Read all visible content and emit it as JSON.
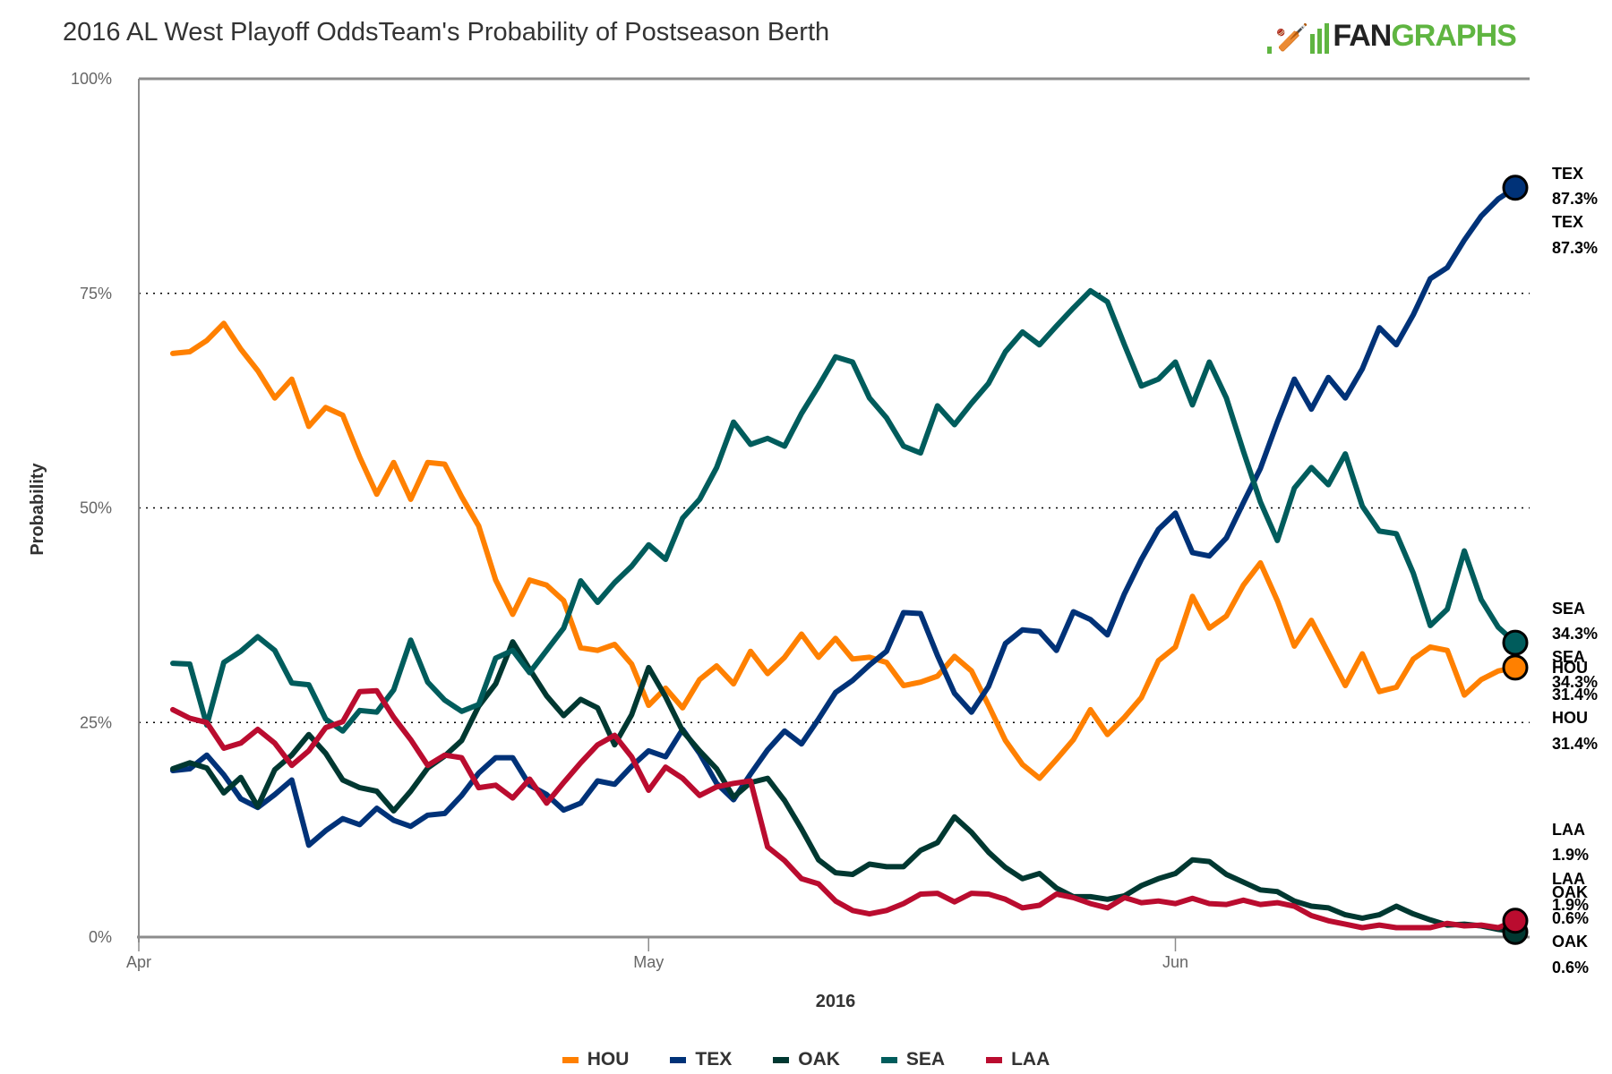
{
  "header": {
    "title": "2016 AL West Playoff OddsTeam's Probability of Postseason Berth",
    "logo": {
      "text_dark": "FAN",
      "text_green": "GRAPHS",
      "icon": "batter-silhouette-icon"
    }
  },
  "chart_data": {
    "type": "line",
    "title": "2016 AL West Playoff OddsTeam's Probability of Postseason Berth",
    "xlabel": "2016",
    "ylabel": "Probability",
    "x_tick_labels": [
      "Apr",
      "May",
      "Jun"
    ],
    "x_range": [
      "2016-04-01",
      "2016-06-21"
    ],
    "x_start": "2016-04-03",
    "x_step_days": 1,
    "y_tick_labels": [
      "0%",
      "25%",
      "50%",
      "75%",
      "100%"
    ],
    "y_ticks": [
      0,
      25,
      50,
      75,
      100
    ],
    "ylim": [
      0,
      100
    ],
    "grid": "dotted horizontal at 25/50/75",
    "legend_position": "bottom",
    "series": [
      {
        "name": "HOU",
        "color": "#ff8000",
        "end_label": "HOU",
        "end_value_label": "31.4%",
        "values": [
          68,
          68.2,
          69.5,
          71.5,
          68.5,
          66,
          62.8,
          65,
          59.5,
          61.7,
          60.8,
          55.9,
          51.6,
          55.3,
          51,
          55.3,
          55.1,
          51.3,
          47.9,
          41.6,
          37.6,
          41.6,
          41,
          39.2,
          33.7,
          33.4,
          34.1,
          31.8,
          27,
          29,
          26.7,
          30,
          31.6,
          29.5,
          33.3,
          30.7,
          32.6,
          35.3,
          32.6,
          34.8,
          32.4,
          32.6,
          32,
          29.3,
          29.7,
          30.4,
          32.7,
          31,
          27,
          22.9,
          20.1,
          18.5,
          20.7,
          23,
          26.5,
          23.6,
          25.6,
          27.9,
          32.2,
          33.8,
          39.7,
          36,
          37.4,
          41,
          43.6,
          39.2,
          33.9,
          36.9,
          33.1,
          29.3,
          33,
          28.6,
          29.1,
          32.4,
          33.8,
          33.4,
          28.2,
          30,
          31,
          31.4
        ]
      },
      {
        "name": "TEX",
        "color": "#003278",
        "end_label": "TEX",
        "end_value_label": "87.3%",
        "values": [
          19.4,
          19.6,
          21.2,
          18.9,
          16.1,
          15.1,
          16.6,
          18.3,
          10.7,
          12.4,
          13.8,
          13.1,
          15,
          13.6,
          12.9,
          14.2,
          14.4,
          16.5,
          19.1,
          20.9,
          20.9,
          17.7,
          16.6,
          14.8,
          15.6,
          18.2,
          17.8,
          19.9,
          21.7,
          21,
          24.2,
          21.4,
          17.9,
          16,
          19,
          21.8,
          24,
          22.5,
          25.4,
          28.5,
          29.9,
          31.7,
          33.3,
          37.8,
          37.7,
          32.8,
          28.4,
          26.2,
          29.2,
          34.2,
          35.8,
          35.6,
          33.4,
          37.9,
          37,
          35.2,
          40,
          44,
          47.5,
          49.4,
          44.8,
          44.4,
          46.5,
          50.6,
          54.6,
          60,
          65,
          61.5,
          65.2,
          62.8,
          66.2,
          71,
          69,
          72.5,
          76.7,
          78,
          81.2,
          84,
          86,
          87.3
        ]
      },
      {
        "name": "OAK",
        "color": "#003831",
        "end_label": "OAK",
        "end_value_label": "0.6%",
        "values": [
          19.6,
          20.3,
          19.7,
          16.8,
          18.6,
          15.2,
          19.5,
          21.2,
          23.6,
          21.4,
          18.3,
          17.4,
          17,
          14.7,
          17,
          19.7,
          21.1,
          22.9,
          26.9,
          29.5,
          34.4,
          31.2,
          28.1,
          25.8,
          27.7,
          26.7,
          22.4,
          25.9,
          31.4,
          28,
          24,
          21.7,
          19.6,
          16.3,
          18,
          18.5,
          15.9,
          12.6,
          9,
          7.5,
          7.3,
          8.5,
          8.2,
          8.2,
          10.1,
          11,
          14,
          12.2,
          9.9,
          8.1,
          6.8,
          7.4,
          5.7,
          4.7,
          4.7,
          4.4,
          4.8,
          6,
          6.8,
          7.4,
          9,
          8.8,
          7.3,
          6.4,
          5.5,
          5.3,
          4.2,
          3.6,
          3.4,
          2.6,
          2.2,
          2.6,
          3.6,
          2.7,
          2,
          1.4,
          1.5,
          1.3,
          0.9,
          0.6
        ]
      },
      {
        "name": "SEA",
        "color": "#005c5c",
        "end_label": "SEA",
        "end_value_label": "34.3%",
        "values": [
          31.9,
          31.8,
          24.7,
          32,
          33.3,
          35,
          33.4,
          29.6,
          29.4,
          25.4,
          24,
          26.4,
          26.2,
          28.8,
          34.6,
          29.7,
          27.6,
          26.3,
          27.1,
          32.5,
          33.4,
          30.8,
          33.4,
          36,
          41.5,
          39,
          41.3,
          43.2,
          45.7,
          44,
          48.8,
          51,
          54.7,
          60,
          57.4,
          58.1,
          57.2,
          61,
          64.2,
          67.6,
          67,
          62.8,
          60.5,
          57.2,
          56.4,
          61.9,
          59.7,
          62.2,
          64.5,
          68.2,
          70.5,
          69,
          71.2,
          73.3,
          75.3,
          74,
          69,
          64.2,
          65,
          67,
          62,
          67,
          62.8,
          56.6,
          50.7,
          46.2,
          52.3,
          54.7,
          52.7,
          56.3,
          50.2,
          47.3,
          47,
          42.4,
          36.3,
          38.2,
          45,
          39.3,
          36.1,
          34.3
        ]
      },
      {
        "name": "LAA",
        "color": "#ba0c2f",
        "end_label": "LAA",
        "end_value_label": "1.9%",
        "values": [
          26.5,
          25.5,
          25,
          22,
          22.6,
          24.2,
          22.6,
          20,
          21.7,
          24.4,
          25.1,
          28.6,
          28.7,
          25.6,
          23,
          20,
          21.2,
          20.9,
          17.4,
          17.7,
          16.2,
          18.4,
          15.6,
          18,
          20.3,
          22.4,
          23.5,
          21,
          17.1,
          19.8,
          18.5,
          16.5,
          17.5,
          17.9,
          18.2,
          10.5,
          8.9,
          6.8,
          6.2,
          4.2,
          3.1,
          2.7,
          3.1,
          3.9,
          5,
          5.1,
          4.1,
          5.1,
          5,
          4.4,
          3.4,
          3.7,
          5,
          4.6,
          3.9,
          3.4,
          4.6,
          4,
          4.2,
          3.9,
          4.5,
          3.9,
          3.8,
          4.3,
          3.8,
          4,
          3.6,
          2.5,
          1.9,
          1.5,
          1.1,
          1.4,
          1.1,
          1.1,
          1.1,
          1.6,
          1.3,
          1.4,
          1.1,
          1.9
        ]
      }
    ]
  },
  "legend": {
    "items": [
      {
        "label": "HOU",
        "color": "#ff8000"
      },
      {
        "label": "TEX",
        "color": "#003278"
      },
      {
        "label": "OAK",
        "color": "#003831"
      },
      {
        "label": "SEA",
        "color": "#005c5c"
      },
      {
        "label": "LAA",
        "color": "#ba0c2f"
      }
    ]
  }
}
